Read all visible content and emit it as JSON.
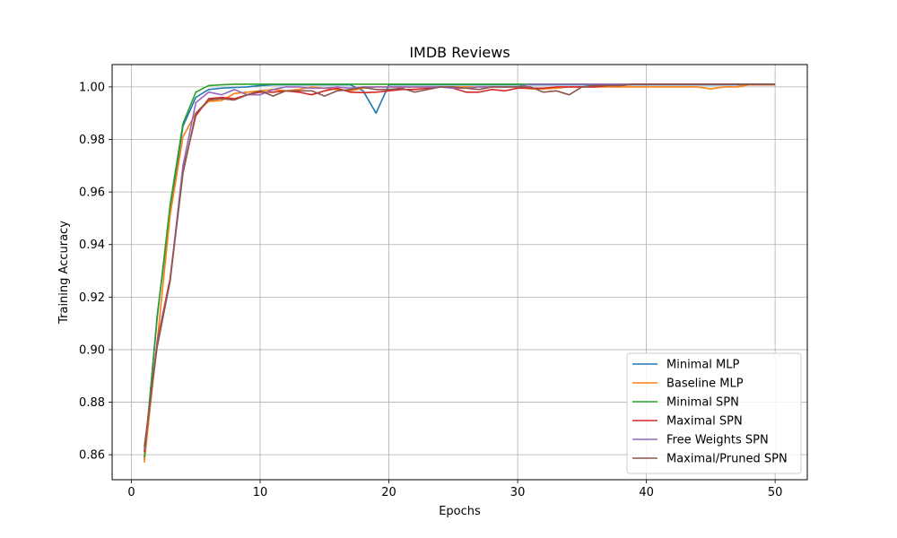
{
  "chart_data": {
    "type": "line",
    "title": "IMDB Reviews",
    "xlabel": "Epochs",
    "ylabel": "Training Accuracy",
    "xlim": [
      -1.5,
      52.5
    ],
    "ylim": [
      0.8505,
      1.0085
    ],
    "xticks": [
      0,
      10,
      20,
      30,
      40,
      50
    ],
    "yticks": [
      0.86,
      0.88,
      0.9,
      0.92,
      0.94,
      0.96,
      0.98,
      1.0
    ],
    "ytick_labels": [
      "0.86",
      "0.88",
      "0.90",
      "0.92",
      "0.94",
      "0.96",
      "0.98",
      "1.00"
    ],
    "grid": true,
    "legend_position": "lower-right",
    "x": [
      1,
      2,
      3,
      4,
      5,
      6,
      7,
      8,
      9,
      10,
      11,
      12,
      13,
      14,
      15,
      16,
      17,
      18,
      19,
      20,
      21,
      22,
      23,
      24,
      25,
      26,
      27,
      28,
      29,
      30,
      31,
      32,
      33,
      34,
      35,
      36,
      37,
      38,
      39,
      40,
      41,
      42,
      43,
      44,
      45,
      46,
      47,
      48,
      49,
      50
    ],
    "series": [
      {
        "name": "Minimal MLP",
        "color": "#1f77b4",
        "values": [
          0.858,
          0.913,
          0.952,
          0.985,
          0.996,
          0.999,
          0.9995,
          0.9998,
          1.0,
          1.0005,
          1.0008,
          1.0008,
          1.0008,
          1.0008,
          1.0008,
          1.0008,
          1.0008,
          0.9985,
          0.99,
          1.0008,
          1.0008,
          1.0008,
          1.0008,
          1.0008,
          1.0008,
          1.0008,
          1.0008,
          1.0008,
          1.0008,
          1.0008,
          1.0008,
          1.0008,
          1.0008,
          1.0008,
          1.0008,
          1.0008,
          1.0008,
          1.0008,
          1.0008,
          1.0008,
          1.0008,
          1.0008,
          1.0008,
          1.0008,
          1.0008,
          1.0008,
          1.0008,
          1.0008,
          1.0008,
          1.0008
        ]
      },
      {
        "name": "Baseline MLP",
        "color": "#ff7f0e",
        "values": [
          0.857,
          0.903,
          0.951,
          0.981,
          0.99,
          0.9945,
          0.9948,
          0.9975,
          0.998,
          0.9985,
          0.999,
          0.9985,
          0.999,
          1.0,
          0.9995,
          0.999,
          0.9985,
          0.9995,
          1.0,
          1.0,
          1.0,
          0.9998,
          1.0,
          1.0,
          1.0,
          1.0,
          1.0,
          1.0,
          1.0,
          1.0,
          0.9992,
          0.9992,
          0.9995,
          1.0,
          1.0,
          1.0,
          1.0,
          1.0,
          1.0,
          1.0,
          1.0,
          1.0,
          1.0,
          1.0,
          0.9992,
          1.0,
          1.0,
          1.0008,
          1.0008,
          1.0008
        ]
      },
      {
        "name": "Minimal SPN",
        "color": "#2ca02c",
        "values": [
          0.859,
          0.912,
          0.955,
          0.986,
          0.998,
          1.0005,
          1.0008,
          1.001,
          1.001,
          1.001,
          1.001,
          1.001,
          1.001,
          1.001,
          1.001,
          1.001,
          1.001,
          1.001,
          1.001,
          1.001,
          1.001,
          1.001,
          1.001,
          1.001,
          1.001,
          1.001,
          1.001,
          1.001,
          1.001,
          1.001,
          1.001,
          1.001,
          1.001,
          1.001,
          1.001,
          1.001,
          1.001,
          1.001,
          1.001,
          1.001,
          1.001,
          1.001,
          1.001,
          1.001,
          1.001,
          1.001,
          1.001,
          1.001,
          1.001,
          1.001
        ]
      },
      {
        "name": "Maximal SPN",
        "color": "#d62728",
        "values": [
          0.861,
          0.903,
          0.927,
          0.968,
          0.989,
          0.9955,
          0.996,
          0.9955,
          0.997,
          0.998,
          0.998,
          0.9985,
          0.998,
          0.997,
          0.9985,
          0.9995,
          0.998,
          0.9978,
          0.998,
          0.9985,
          0.999,
          0.999,
          0.9995,
          1.0,
          0.9995,
          0.998,
          0.998,
          0.999,
          0.9985,
          0.9995,
          0.9995,
          0.9995,
          1.0,
          1.0,
          1.0,
          1.0,
          1.0005,
          1.0005,
          1.001,
          1.001,
          1.001,
          1.001,
          1.001,
          1.001,
          1.001,
          1.001,
          1.001,
          1.001,
          1.001,
          1.001
        ]
      },
      {
        "name": "Free Weights SPN",
        "color": "#9467bd",
        "values": [
          0.862,
          0.902,
          0.926,
          0.97,
          0.994,
          0.998,
          0.997,
          0.999,
          0.997,
          0.997,
          0.999,
          1.0,
          1.0,
          0.9995,
          0.9995,
          1.0,
          0.9995,
          1.0,
          1.0,
          1.0,
          1.0,
          1.0,
          1.0,
          1.0,
          0.9995,
          0.9995,
          1.0,
          1.0,
          1.0,
          1.0,
          1.001,
          1.001,
          1.001,
          1.001,
          1.001,
          1.001,
          1.001,
          1.001,
          1.001,
          1.001,
          1.001,
          1.001,
          1.001,
          1.001,
          1.001,
          1.001,
          1.001,
          1.001,
          1.001,
          1.001
        ]
      },
      {
        "name": "Maximal/Pruned SPN",
        "color": "#8c564b",
        "values": [
          0.863,
          0.901,
          0.926,
          0.967,
          0.99,
          0.995,
          0.9955,
          0.995,
          0.997,
          0.9985,
          0.9965,
          0.9985,
          0.9985,
          0.9985,
          0.9965,
          0.9985,
          0.999,
          0.9998,
          0.999,
          0.999,
          0.9995,
          0.998,
          0.999,
          1.0,
          1.0,
          0.9995,
          0.999,
          1.0,
          1.0,
          1.0,
          1.0,
          0.998,
          0.9985,
          0.997,
          1.0,
          1.0005,
          1.0005,
          1.0005,
          1.001,
          1.001,
          1.001,
          1.001,
          1.001,
          1.001,
          1.001,
          1.001,
          1.001,
          1.001,
          1.001,
          1.001
        ]
      }
    ]
  }
}
